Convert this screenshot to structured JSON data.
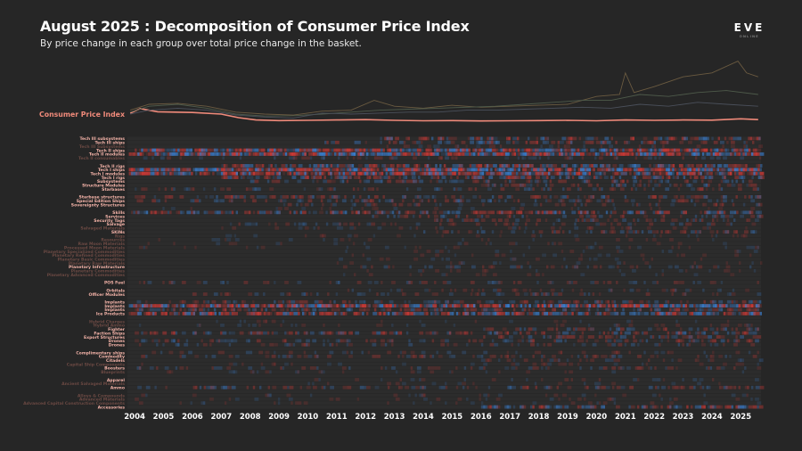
{
  "header": {
    "title": "August 2025 : Decomposition of Consumer Price Index",
    "subtitle": "By price change in each group over total price change in the basket.",
    "logo_main": "EVE",
    "logo_sub": "ONLINE"
  },
  "colors": {
    "background": "#262626",
    "cpi_line": "#f08a7a",
    "label_bright": "#f4b3a8",
    "label_dim": "#6b4943",
    "increase": "#d23a36",
    "decrease": "#3a7fd0"
  },
  "chart_data": {
    "type": "heatmap",
    "title": "August 2025 : Decomposition of Consumer Price Index",
    "cpi_label": "Consumer Price Index",
    "x_ticks": [
      "2004",
      "2005",
      "2006",
      "2007",
      "2008",
      "2009",
      "2010",
      "2011",
      "2012",
      "2013",
      "2014",
      "2015",
      "2016",
      "2017",
      "2018",
      "2019",
      "2020",
      "2021",
      "2022",
      "2023",
      "2024",
      "2025"
    ],
    "xlim": [
      2003.75,
      2025.7
    ],
    "top_lines": [
      {
        "color": "#f08a7a",
        "points": [
          [
            2003.85,
            0.55
          ],
          [
            2004.2,
            0.78
          ],
          [
            2004.8,
            0.62
          ],
          [
            2006,
            0.58
          ],
          [
            2007,
            0.5
          ],
          [
            2007.6,
            0.32
          ],
          [
            2008.2,
            0.2
          ],
          [
            2009,
            0.17
          ],
          [
            2010,
            0.18
          ],
          [
            2011,
            0.2
          ],
          [
            2012,
            0.22
          ],
          [
            2013,
            0.18
          ],
          [
            2014,
            0.16
          ],
          [
            2015,
            0.17
          ],
          [
            2016,
            0.15
          ],
          [
            2017,
            0.16
          ],
          [
            2018,
            0.17
          ],
          [
            2019,
            0.18
          ],
          [
            2020,
            0.16
          ],
          [
            2021,
            0.2
          ],
          [
            2022,
            0.18
          ],
          [
            2023,
            0.2
          ],
          [
            2024,
            0.19
          ],
          [
            2025,
            0.26
          ],
          [
            2025.6,
            0.22
          ]
        ]
      },
      {
        "color": "#6a5a40",
        "points": [
          [
            2003.85,
            0.7
          ],
          [
            2004.5,
            1.0
          ],
          [
            2005.5,
            1.05
          ],
          [
            2006.5,
            0.9
          ],
          [
            2007.5,
            0.6
          ],
          [
            2008.5,
            0.5
          ],
          [
            2009.5,
            0.45
          ],
          [
            2010.5,
            0.65
          ],
          [
            2011.5,
            0.7
          ],
          [
            2012.3,
            1.2
          ],
          [
            2013,
            0.9
          ],
          [
            2014,
            0.8
          ],
          [
            2015,
            0.95
          ],
          [
            2016,
            0.85
          ],
          [
            2017,
            0.9
          ],
          [
            2018,
            0.95
          ],
          [
            2019,
            1.0
          ],
          [
            2020,
            1.4
          ],
          [
            2020.8,
            1.5
          ],
          [
            2021,
            2.6
          ],
          [
            2021.3,
            1.6
          ],
          [
            2022,
            1.9
          ],
          [
            2023,
            2.4
          ],
          [
            2024,
            2.6
          ],
          [
            2024.9,
            3.2
          ],
          [
            2025.2,
            2.6
          ],
          [
            2025.6,
            2.4
          ]
        ]
      },
      {
        "color": "#4e5a4a",
        "points": [
          [
            2003.85,
            0.6
          ],
          [
            2004.5,
            0.9
          ],
          [
            2005.5,
            1.0
          ],
          [
            2006.5,
            0.8
          ],
          [
            2007.5,
            0.5
          ],
          [
            2008.5,
            0.4
          ],
          [
            2009.5,
            0.42
          ],
          [
            2010.5,
            0.5
          ],
          [
            2011.5,
            0.6
          ],
          [
            2012.5,
            0.7
          ],
          [
            2013.5,
            0.75
          ],
          [
            2014.5,
            0.8
          ],
          [
            2015.5,
            0.85
          ],
          [
            2016.5,
            0.9
          ],
          [
            2017.5,
            1.0
          ],
          [
            2018.5,
            1.1
          ],
          [
            2019.5,
            1.2
          ],
          [
            2020.5,
            1.2
          ],
          [
            2021.5,
            1.5
          ],
          [
            2022.5,
            1.4
          ],
          [
            2023.5,
            1.6
          ],
          [
            2024.5,
            1.7
          ],
          [
            2025.6,
            1.5
          ]
        ]
      },
      {
        "color": "#4a4f5a",
        "points": [
          [
            2003.85,
            0.5
          ],
          [
            2004.5,
            0.7
          ],
          [
            2005.5,
            0.8
          ],
          [
            2006.5,
            0.7
          ],
          [
            2007.5,
            0.45
          ],
          [
            2008.5,
            0.35
          ],
          [
            2009.5,
            0.3
          ],
          [
            2010.5,
            0.55
          ],
          [
            2011.5,
            0.5
          ],
          [
            2012.5,
            0.55
          ],
          [
            2013.5,
            0.6
          ],
          [
            2014.5,
            0.6
          ],
          [
            2015.5,
            0.7
          ],
          [
            2016.5,
            0.7
          ],
          [
            2017.5,
            0.75
          ],
          [
            2018.5,
            0.8
          ],
          [
            2019.5,
            0.85
          ],
          [
            2020.5,
            0.8
          ],
          [
            2021.5,
            1.0
          ],
          [
            2022.5,
            0.9
          ],
          [
            2023.5,
            1.1
          ],
          [
            2024.5,
            1.0
          ],
          [
            2025.6,
            0.9
          ]
        ]
      }
    ],
    "rows": [
      {
        "label": "Tech III subsystems",
        "hl": true,
        "intensity": 0.5,
        "start": 2012.5
      },
      {
        "label": "Tech III ships",
        "hl": true,
        "intensity": 0.4,
        "start": 2010.5
      },
      {
        "label": "Tech III Subsystems",
        "hl": false,
        "intensity": 0.1,
        "start": 2012.5
      },
      {
        "label": "Tech II ships",
        "hl": true,
        "intensity": 0.8,
        "start": 2004
      },
      {
        "label": "Tech II modules",
        "hl": true,
        "intensity": 0.9,
        "start": 2003.8
      },
      {
        "label": "Tech II consumables",
        "hl": false,
        "intensity": 0.15,
        "start": 2004
      },
      {
        "label": "",
        "hl": false,
        "intensity": 0.0,
        "start": 2004
      },
      {
        "label": "Tech II rigs",
        "hl": true,
        "intensity": 0.6,
        "start": 2007
      },
      {
        "label": "Tech I ships",
        "hl": true,
        "intensity": 0.9,
        "start": 2003.8
      },
      {
        "label": "Tech I modules",
        "hl": true,
        "intensity": 0.85,
        "start": 2003.8
      },
      {
        "label": "Tech I rigs",
        "hl": true,
        "intensity": 0.5,
        "start": 2007
      },
      {
        "label": "Subsystems",
        "hl": true,
        "intensity": 0.3,
        "start": 2008
      },
      {
        "label": "Structure Modules",
        "hl": true,
        "intensity": 0.3,
        "start": 2016
      },
      {
        "label": "Starbases",
        "hl": true,
        "intensity": 0.25,
        "start": 2004
      },
      {
        "label": "",
        "hl": false,
        "intensity": 0.0,
        "start": 2004
      },
      {
        "label": "Starbase structures",
        "hl": true,
        "intensity": 0.35,
        "start": 2004
      },
      {
        "label": "Special Edition Ships",
        "hl": true,
        "intensity": 0.3,
        "start": 2004
      },
      {
        "label": "Sovereignty Structures",
        "hl": true,
        "intensity": 0.2,
        "start": 2009
      },
      {
        "label": "",
        "hl": false,
        "intensity": 0.05,
        "start": 2004
      },
      {
        "label": "Skills",
        "hl": true,
        "intensity": 0.55,
        "start": 2003.8
      },
      {
        "label": "Services",
        "hl": true,
        "intensity": 0.3,
        "start": 2012
      },
      {
        "label": "Security Tags",
        "hl": true,
        "intensity": 0.25,
        "start": 2014
      },
      {
        "label": "Salvage",
        "hl": true,
        "intensity": 0.2,
        "start": 2007
      },
      {
        "label": "Salvaged Materials",
        "hl": false,
        "intensity": 0.1,
        "start": 2007
      },
      {
        "label": "SKINs",
        "hl": true,
        "intensity": 0.3,
        "start": 2014
      },
      {
        "label": "Rigs",
        "hl": false,
        "intensity": 0.05,
        "start": 2007
      },
      {
        "label": "Resources",
        "hl": false,
        "intensity": 0.05,
        "start": 2004
      },
      {
        "label": "Raw Moon Materials",
        "hl": false,
        "intensity": 0.05,
        "start": 2004
      },
      {
        "label": "Processed Moon Materials",
        "hl": false,
        "intensity": 0.05,
        "start": 2004
      },
      {
        "label": "Planetary Specialized Commodities",
        "hl": false,
        "intensity": 0.05,
        "start": 2011
      },
      {
        "label": "Planetary Refined Commodities",
        "hl": false,
        "intensity": 0.05,
        "start": 2011
      },
      {
        "label": "Planetary Basic Commodities",
        "hl": false,
        "intensity": 0.05,
        "start": 2011
      },
      {
        "label": "Planetary Raw Materials",
        "hl": false,
        "intensity": 0.05,
        "start": 2011
      },
      {
        "label": "Planetary Infrastructure",
        "hl": true,
        "intensity": 0.2,
        "start": 2011
      },
      {
        "label": "Planetary Commodities",
        "hl": false,
        "intensity": 0.05,
        "start": 2011
      },
      {
        "label": "Planetary Advanced Commodities",
        "hl": false,
        "intensity": 0.05,
        "start": 2011
      },
      {
        "label": "",
        "hl": false,
        "intensity": 0.0,
        "start": 2004
      },
      {
        "label": "POS Fuel",
        "hl": true,
        "intensity": 0.2,
        "start": 2004
      },
      {
        "label": "",
        "hl": false,
        "intensity": 0.0,
        "start": 2004
      },
      {
        "label": "Orbitals",
        "hl": true,
        "intensity": 0.15,
        "start": 2011
      },
      {
        "label": "Officer Modules",
        "hl": true,
        "intensity": 0.2,
        "start": 2006
      },
      {
        "label": "",
        "hl": false,
        "intensity": 0.0,
        "start": 2004
      },
      {
        "label": "Implants",
        "hl": true,
        "intensity": 0.3,
        "start": 2004
      },
      {
        "label": "Implants",
        "hl": true,
        "intensity": 0.9,
        "start": 2003.8
      },
      {
        "label": "Implants",
        "hl": true,
        "intensity": 0.4,
        "start": 2004
      },
      {
        "label": "Ice Products",
        "hl": true,
        "intensity": 0.75,
        "start": 2003.8
      },
      {
        "label": "",
        "hl": false,
        "intensity": 0.0,
        "start": 2004
      },
      {
        "label": "Hybrid Charges",
        "hl": false,
        "intensity": 0.05,
        "start": 2004
      },
      {
        "label": "Hybrid Ammo",
        "hl": false,
        "intensity": 0.05,
        "start": 2004
      },
      {
        "label": "Fighter",
        "hl": true,
        "intensity": 0.3,
        "start": 2016
      },
      {
        "label": "Faction Ships",
        "hl": true,
        "intensity": 0.4,
        "start": 2004
      },
      {
        "label": "Export Structures",
        "hl": true,
        "intensity": 0.35,
        "start": 2016
      },
      {
        "label": "Drones",
        "hl": true,
        "intensity": 0.3,
        "start": 2004
      },
      {
        "label": "Drones",
        "hl": true,
        "intensity": 0.2,
        "start": 2004
      },
      {
        "label": "",
        "hl": false,
        "intensity": 0.0,
        "start": 2004
      },
      {
        "label": "Complimentary ships",
        "hl": true,
        "intensity": 0.15,
        "start": 2004
      },
      {
        "label": "Commodity",
        "hl": true,
        "intensity": 0.2,
        "start": 2004
      },
      {
        "label": "Citadels",
        "hl": true,
        "intensity": 0.15,
        "start": 2016
      },
      {
        "label": "Capital Ship Components",
        "hl": false,
        "intensity": 0.05,
        "start": 2004
      },
      {
        "label": "Boosters",
        "hl": true,
        "intensity": 0.2,
        "start": 2004
      },
      {
        "label": "Blueprints",
        "hl": false,
        "intensity": 0.05,
        "start": 2004
      },
      {
        "label": "",
        "hl": false,
        "intensity": 0.0,
        "start": 2004
      },
      {
        "label": "Apparel",
        "hl": true,
        "intensity": 0.1,
        "start": 2010
      },
      {
        "label": "Ancient Salvaged Materials",
        "hl": false,
        "intensity": 0.05,
        "start": 2010
      },
      {
        "label": "Ammo",
        "hl": true,
        "intensity": 0.3,
        "start": 2003.8
      },
      {
        "label": "",
        "hl": false,
        "intensity": 0.0,
        "start": 2004
      },
      {
        "label": "Alloys & Compounds",
        "hl": false,
        "intensity": 0.05,
        "start": 2004
      },
      {
        "label": "Advanced Materials",
        "hl": false,
        "intensity": 0.05,
        "start": 2004
      },
      {
        "label": "Advanced Capital Construction Components",
        "hl": false,
        "intensity": 0.05,
        "start": 2004
      },
      {
        "label": "Accessories",
        "hl": true,
        "intensity": 0.55,
        "start": 2016
      }
    ]
  }
}
